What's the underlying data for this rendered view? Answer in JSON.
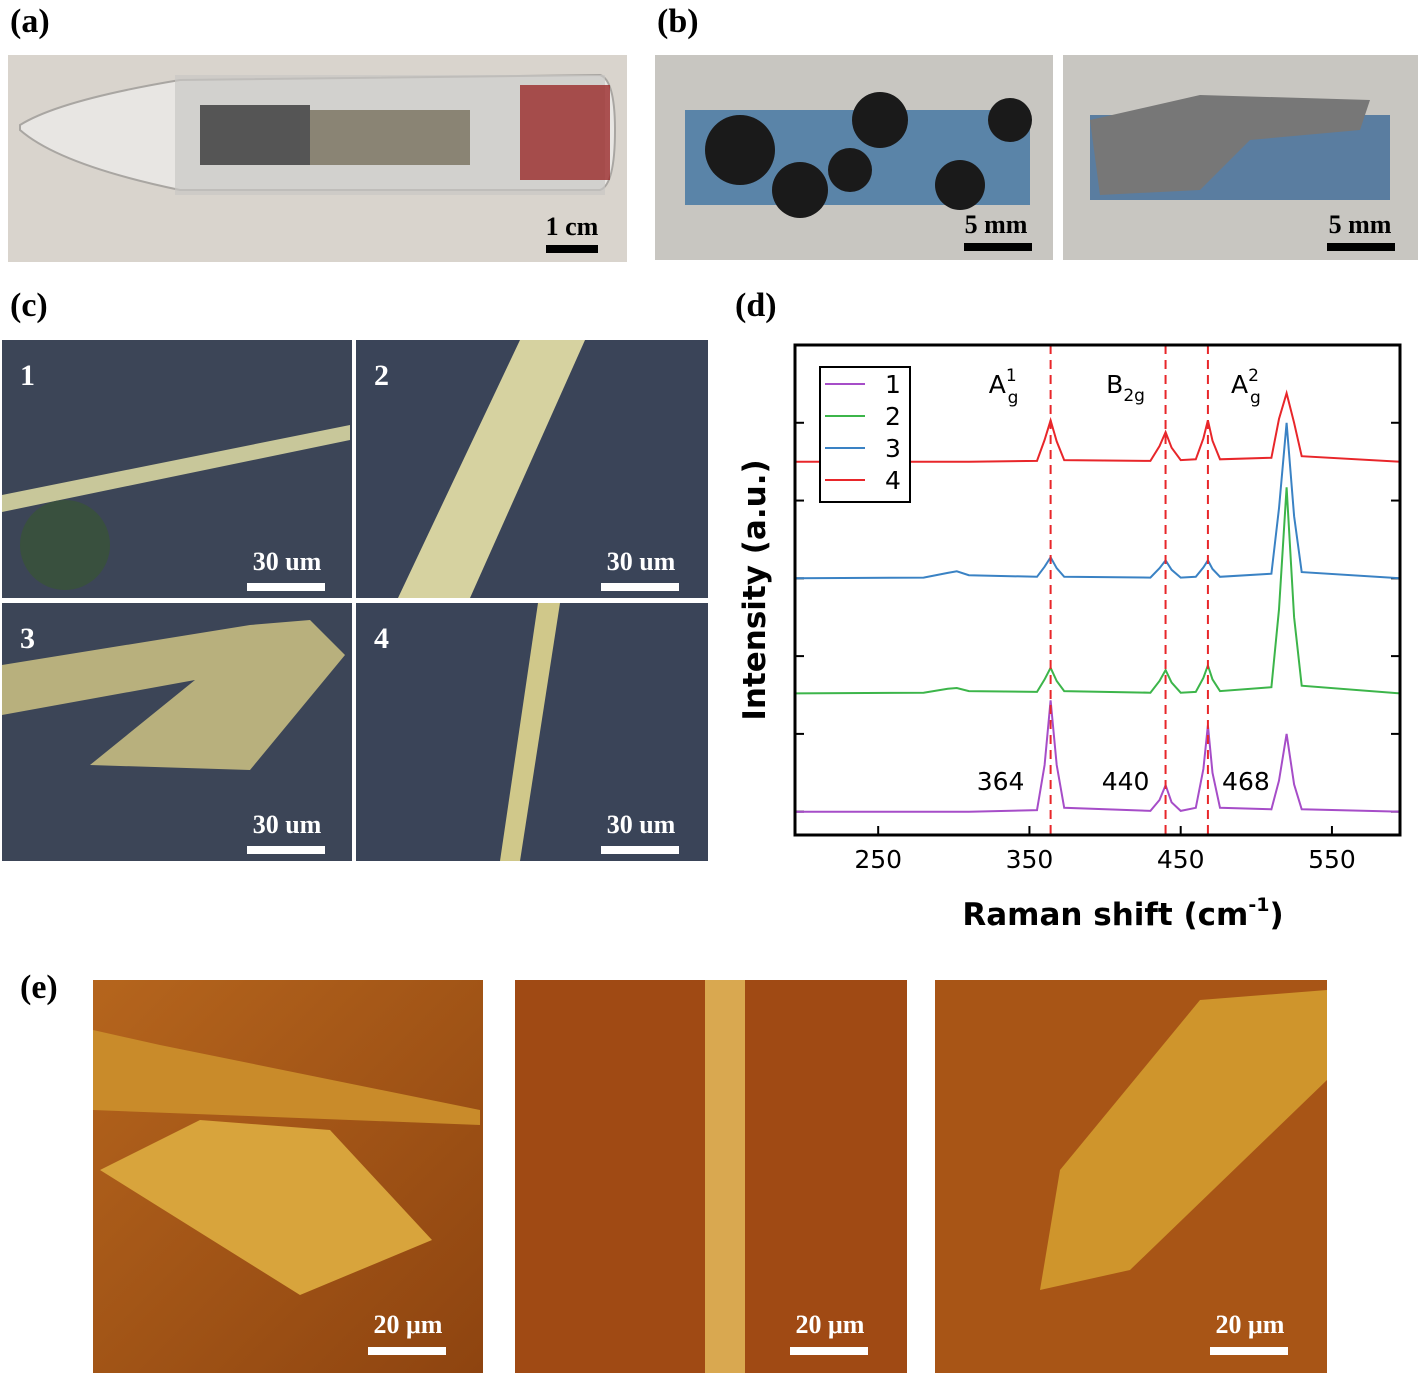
{
  "panels": {
    "a": {
      "label": "(a)",
      "scale": "1 cm"
    },
    "b": {
      "label": "(b)",
      "scales": [
        "5 mm",
        "5 mm"
      ]
    },
    "c": {
      "label": "(c)",
      "tiles": [
        {
          "number": "1",
          "scale": "30 um"
        },
        {
          "number": "2",
          "scale": "30 um"
        },
        {
          "number": "3",
          "scale": "30 um"
        },
        {
          "number": "4",
          "scale": "30 um"
        }
      ]
    },
    "d": {
      "label": "(d)"
    },
    "e": {
      "label": "(e)",
      "scales": [
        "20 μm",
        "20 μm",
        "20 μm"
      ]
    }
  },
  "chart_data": {
    "type": "line",
    "x_label": {
      "text": "Raman  shift  (cm",
      "sup": "-1",
      "tail": ")"
    },
    "y_label": "Intensity  (a.u.)",
    "xlim": [
      195,
      595
    ],
    "xticks": [
      250,
      350,
      450,
      550
    ],
    "ylim": [
      -0.3,
      6
    ],
    "yticks": [
      0,
      1,
      2,
      3,
      4,
      5
    ],
    "modes": [
      {
        "base": "A",
        "sub": "g",
        "sup": "1"
      },
      {
        "base": "B",
        "sub": "2g"
      },
      {
        "base": "A",
        "sub": "g",
        "sup": "2"
      }
    ],
    "peaks": [
      364,
      440,
      468
    ],
    "x": [
      195,
      280,
      296,
      302,
      310,
      355,
      360,
      364,
      368,
      373,
      430,
      436,
      440,
      444,
      450,
      460,
      465,
      468,
      471,
      476,
      510,
      515,
      520,
      525,
      530,
      595
    ],
    "series": [
      {
        "name": "1",
        "color": "#a64dc8",
        "values": [
          0,
          0,
          0,
          0,
          0,
          0.02,
          0.6,
          1.43,
          0.6,
          0.05,
          0.01,
          0.15,
          0.34,
          0.12,
          0.01,
          0.05,
          0.55,
          1.11,
          0.5,
          0.05,
          0.03,
          0.4,
          1.0,
          0.35,
          0.03,
          0
        ]
      },
      {
        "name": "2",
        "color": "#3cb54a",
        "values": [
          1.52,
          1.53,
          1.58,
          1.59,
          1.55,
          1.54,
          1.7,
          1.85,
          1.68,
          1.55,
          1.53,
          1.68,
          1.82,
          1.66,
          1.53,
          1.54,
          1.72,
          1.88,
          1.7,
          1.55,
          1.6,
          2.6,
          4.17,
          2.5,
          1.62,
          1.52
        ]
      },
      {
        "name": "3",
        "color": "#3a82c4",
        "values": [
          3.0,
          3.01,
          3.07,
          3.09,
          3.04,
          3.02,
          3.15,
          3.27,
          3.13,
          3.02,
          3.01,
          3.13,
          3.23,
          3.11,
          3.01,
          3.02,
          3.14,
          3.23,
          3.12,
          3.02,
          3.06,
          3.9,
          5.0,
          3.8,
          3.08,
          3.0
        ]
      },
      {
        "name": "4",
        "color": "#e8262a",
        "values": [
          4.5,
          4.5,
          4.5,
          4.5,
          4.5,
          4.51,
          4.78,
          5.03,
          4.76,
          4.52,
          4.51,
          4.7,
          4.88,
          4.68,
          4.52,
          4.53,
          4.8,
          5.03,
          4.77,
          4.53,
          4.55,
          5.05,
          5.38,
          5.0,
          4.57,
          4.5
        ]
      }
    ]
  }
}
